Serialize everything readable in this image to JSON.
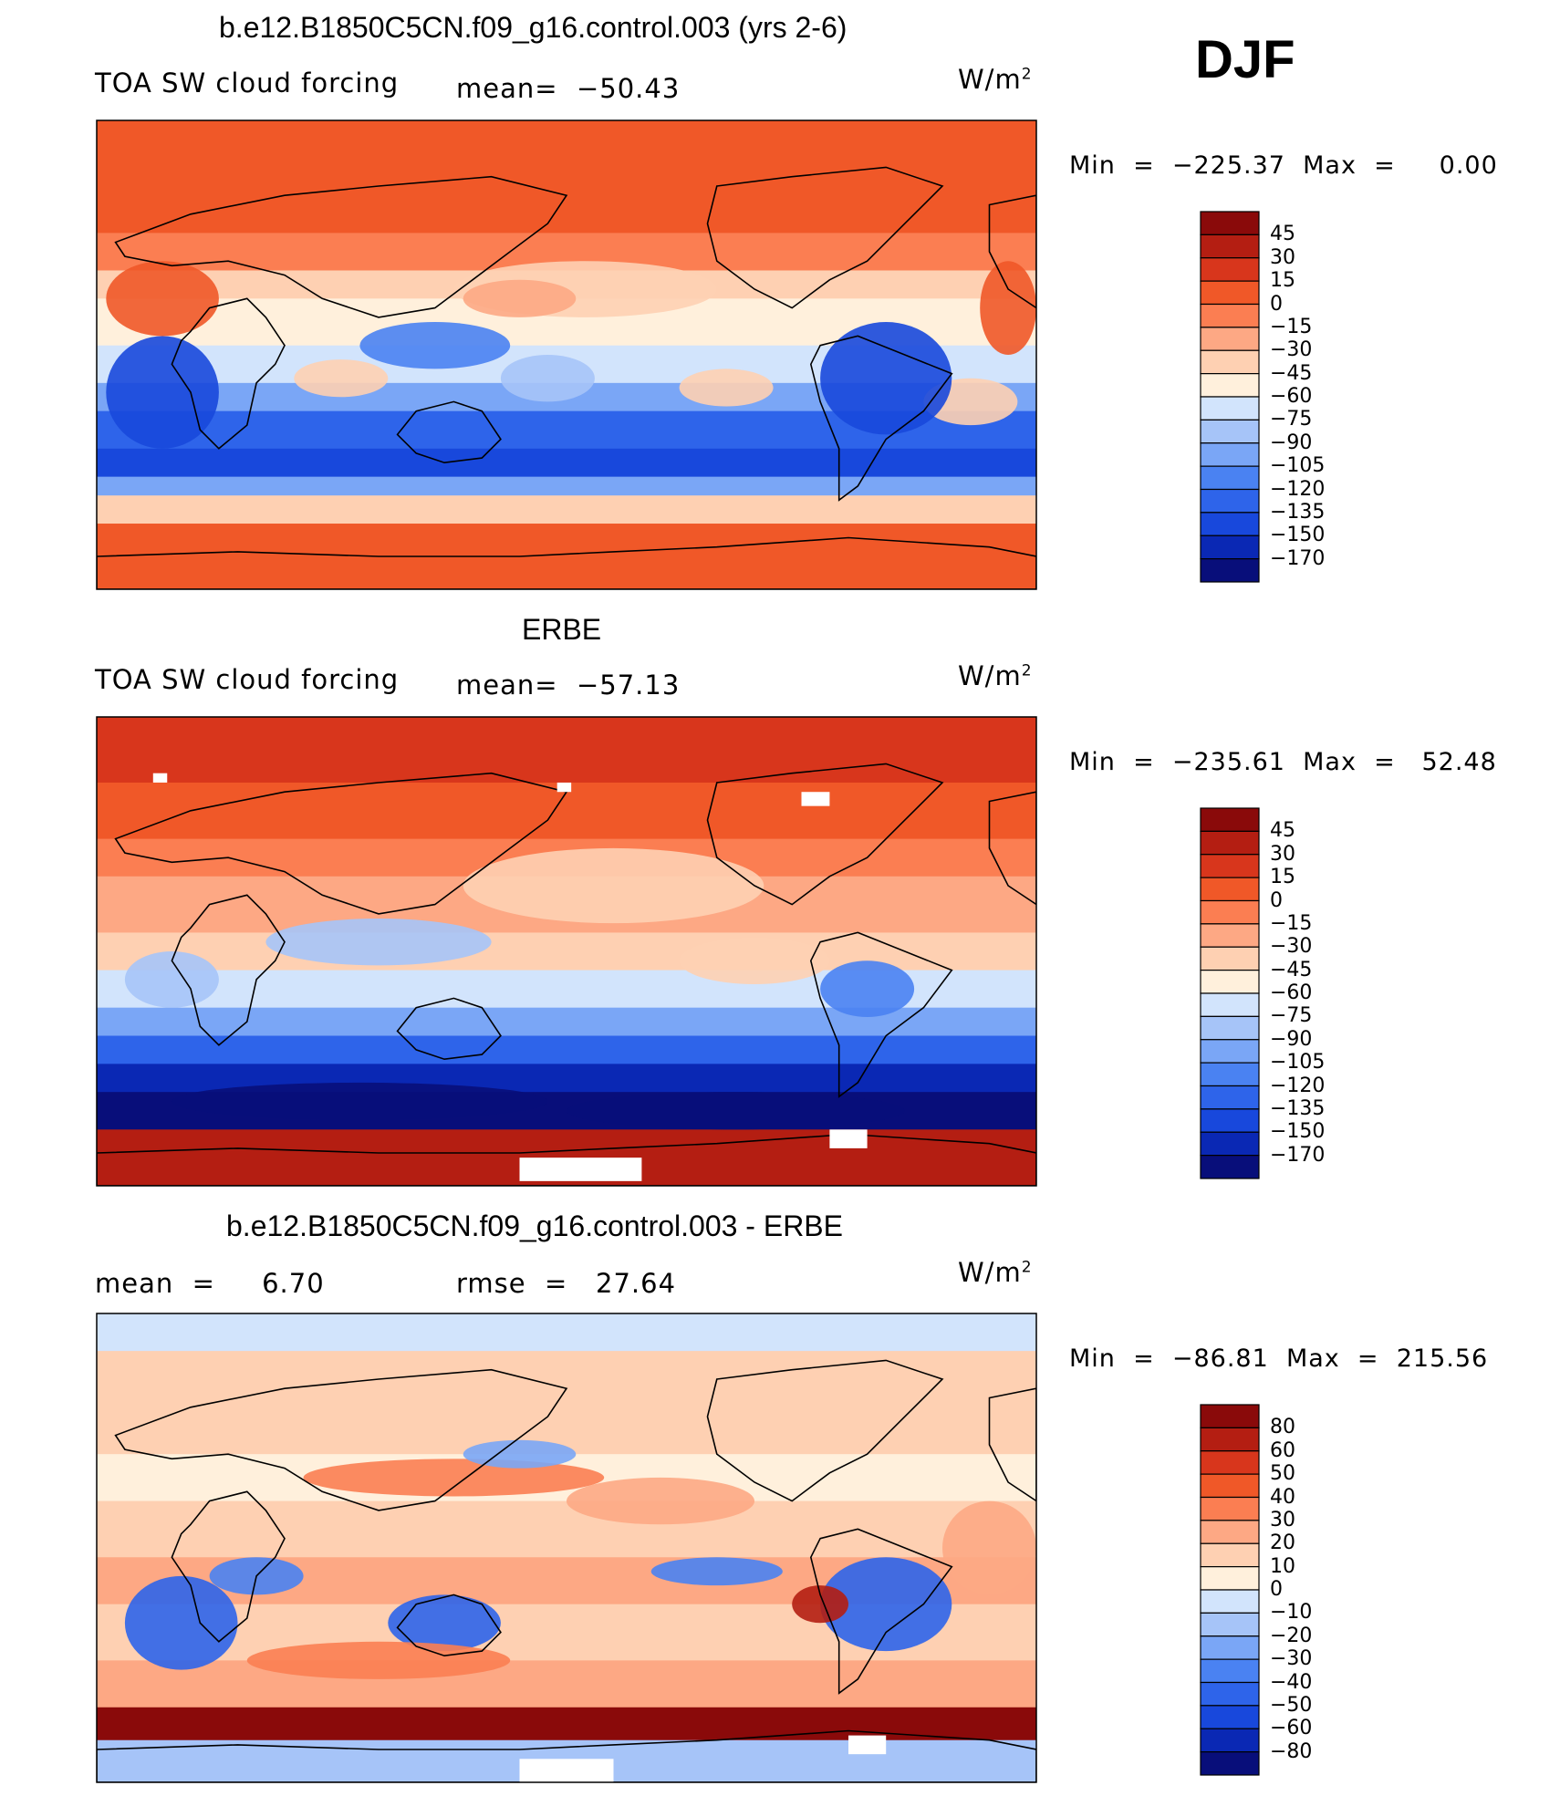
{
  "season": "DJF",
  "colors": {
    "ramp": [
      "#080e7a",
      "#0a28b4",
      "#1848dc",
      "#2e64ea",
      "#4a82f2",
      "#7aa6f6",
      "#a6c4f8",
      "#d2e4fc",
      "#fff0dc",
      "#fed0b2",
      "#fda884",
      "#fb7e52",
      "#f05828",
      "#d8361c",
      "#b41e12",
      "#8a0a0a"
    ],
    "land_outline": "#000000"
  },
  "panels": [
    {
      "title": "b.e12.B1850C5CN.f09_g16.control.003 (yrs 2-6)",
      "left_label": "TOA SW cloud forcing",
      "mid_label": "mean=  −50.43",
      "units": "W/m",
      "units_sup": "2",
      "minmax": "Min  =  −225.37  Max  =     0.00",
      "colorbar_labels": [
        "45",
        "30",
        "15",
        "0",
        "−15",
        "−30",
        "−45",
        "−60",
        "−75",
        "−90",
        "−105",
        "−120",
        "−135",
        "−150",
        "−170"
      ]
    },
    {
      "title": "ERBE",
      "left_label": "TOA SW cloud forcing",
      "mid_label": "mean=  −57.13",
      "units": "W/m",
      "units_sup": "2",
      "minmax": "Min  =  −235.61  Max  =   52.48",
      "colorbar_labels": [
        "45",
        "30",
        "15",
        "0",
        "−15",
        "−30",
        "−45",
        "−60",
        "−75",
        "−90",
        "−105",
        "−120",
        "−135",
        "−150",
        "−170"
      ]
    },
    {
      "title": "b.e12.B1850C5CN.f09_g16.control.003 - ERBE",
      "left_label": "mean  =     6.70",
      "mid_label": "rmse  =   27.64",
      "units": "W/m",
      "units_sup": "2",
      "minmax": "Min  =  −86.81  Max  =  215.56",
      "colorbar_labels": [
        "80",
        "60",
        "50",
        "40",
        "30",
        "20",
        "10",
        "0",
        "−10",
        "−20",
        "−30",
        "−40",
        "−50",
        "−60",
        "−80"
      ]
    }
  ],
  "chart_data": {
    "type": "heatmap",
    "variable": "TOA SW cloud forcing",
    "units": "W/m2",
    "season": "DJF",
    "maps": [
      {
        "name": "b.e12.B1850C5CN.f09_g16.control.003 (yrs 2-6)",
        "mean": -50.43,
        "min": -225.37,
        "max": 0.0,
        "contour_levels": [
          45,
          30,
          15,
          0,
          -15,
          -30,
          -45,
          -60,
          -75,
          -90,
          -105,
          -120,
          -135,
          -150,
          -170
        ]
      },
      {
        "name": "ERBE",
        "mean": -57.13,
        "min": -235.61,
        "max": 52.48,
        "contour_levels": [
          45,
          30,
          15,
          0,
          -15,
          -30,
          -45,
          -60,
          -75,
          -90,
          -105,
          -120,
          -135,
          -150,
          -170
        ]
      },
      {
        "name": "b.e12.B1850C5CN.f09_g16.control.003 - ERBE",
        "mean": 6.7,
        "rmse": 27.64,
        "min": -86.81,
        "max": 215.56,
        "contour_levels": [
          80,
          60,
          50,
          40,
          30,
          20,
          10,
          0,
          -10,
          -20,
          -30,
          -40,
          -50,
          -60,
          -80
        ]
      }
    ]
  }
}
